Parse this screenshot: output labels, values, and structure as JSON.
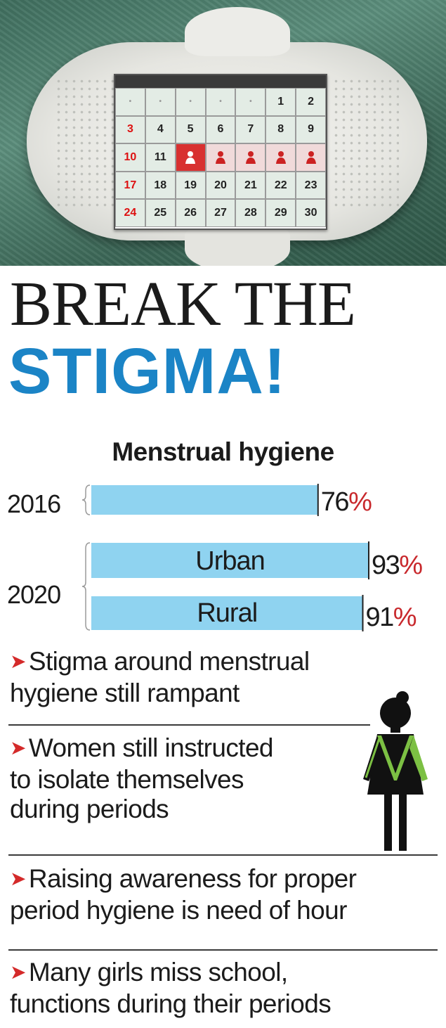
{
  "calendar": {
    "rows": [
      [
        "",
        "",
        "",
        "",
        "",
        "1",
        "2"
      ],
      [
        "3",
        "4",
        "5",
        "6",
        "7",
        "8",
        "9"
      ],
      [
        "10",
        "11",
        "",
        "",
        "",
        "",
        ""
      ],
      [
        "17",
        "18",
        "19",
        "20",
        "21",
        "22",
        "23"
      ],
      [
        "24",
        "25",
        "26",
        "27",
        "28",
        "29",
        "30"
      ]
    ],
    "period_days": 5
  },
  "headline": {
    "line1": "BREAK THE",
    "line2": "STIGMA!"
  },
  "chart_data": {
    "type": "bar",
    "title": "Menstrual hygiene",
    "unit": "%",
    "groups": [
      {
        "year": "2016",
        "bars": [
          {
            "label": "",
            "value": 76
          }
        ]
      },
      {
        "year": "2020",
        "bars": [
          {
            "label": "Urban",
            "value": 93
          },
          {
            "label": "Rural",
            "value": 91
          }
        ]
      }
    ]
  },
  "bullets": [
    {
      "lines": [
        "Stigma around menstrual",
        "hygiene still rampant"
      ]
    },
    {
      "lines": [
        "Women still instructed",
        "to isolate themselves",
        "during periods"
      ]
    },
    {
      "lines": [
        "Raising awareness for proper",
        "period hygiene is need of hour"
      ]
    },
    {
      "lines": [
        "Many girls miss school,",
        "functions during their periods"
      ]
    }
  ],
  "colors": {
    "bar": "#8fd3f0",
    "accent_blue": "#1b84c6",
    "percent_red": "#c8282c",
    "arrow_red": "#d42a2a",
    "figure_green": "#7cc043"
  },
  "icons": {
    "calendar_marker": "woman-icon",
    "figure": "woman-figure-icon",
    "bullet": "arrow-bullet-icon"
  }
}
